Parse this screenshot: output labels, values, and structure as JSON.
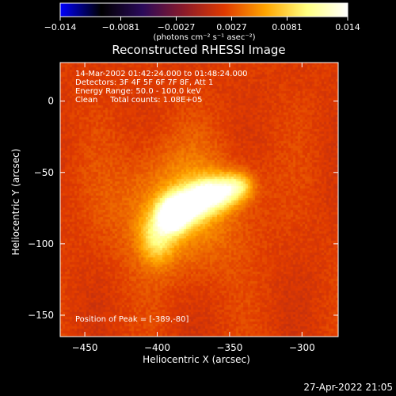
{
  "chart_data": {
    "type": "heatmap",
    "title": "Reconstructed RHESSI Image",
    "xlabel": "Heliocentric X (arcsec)",
    "ylabel": "Heliocentric Y (arcsec)",
    "xlim": [
      -467,
      -275
    ],
    "ylim": [
      -165,
      27
    ],
    "xticks": [
      -450,
      -400,
      -350,
      -300
    ],
    "yticks": [
      0,
      -50,
      -100,
      -150
    ],
    "colorbar": {
      "range": [
        -0.014,
        0.014
      ],
      "ticks": [
        "-0.014",
        "-0.0081",
        "-0.0027",
        "0.0027",
        "0.0081",
        "0.014"
      ],
      "unit_label": "(photons cm⁻² s⁻¹ asec⁻²)",
      "colormap": [
        "#0000ff",
        "#000000",
        "#2a0a5a",
        "#8a1a2a",
        "#e03a00",
        "#ffa500",
        "#ffff80",
        "#ffffff"
      ]
    },
    "annotations": [
      "14-Mar-2002 01:42:24.000 to 01:48:24.000",
      "Detectors: 3F 4F 5F 6F 7F 8F, Att 1",
      "Energy Range: 50.0 - 100.0 keV",
      "Clean     Total counts: 1.08E+05"
    ],
    "peak_label": "Position of Peak = [-389,-80]",
    "peak": [
      -389,
      -80
    ],
    "sources": [
      {
        "x": -389,
        "y": -80,
        "amp": 0.014,
        "sx": 7,
        "sy": 8
      },
      {
        "x": -378,
        "y": -73,
        "amp": 0.01,
        "sx": 9,
        "sy": 8
      },
      {
        "x": -362,
        "y": -65,
        "amp": 0.0105,
        "sx": 10,
        "sy": 8
      },
      {
        "x": -345,
        "y": -60,
        "amp": 0.007,
        "sx": 8,
        "sy": 7
      },
      {
        "x": -400,
        "y": -95,
        "amp": 0.006,
        "sx": 8,
        "sy": 12
      },
      {
        "x": -385,
        "y": -75,
        "amp": 0.004,
        "sx": 30,
        "sy": 30
      }
    ]
  },
  "footer": {
    "timestamp": "27-Apr-2022 21:05"
  }
}
